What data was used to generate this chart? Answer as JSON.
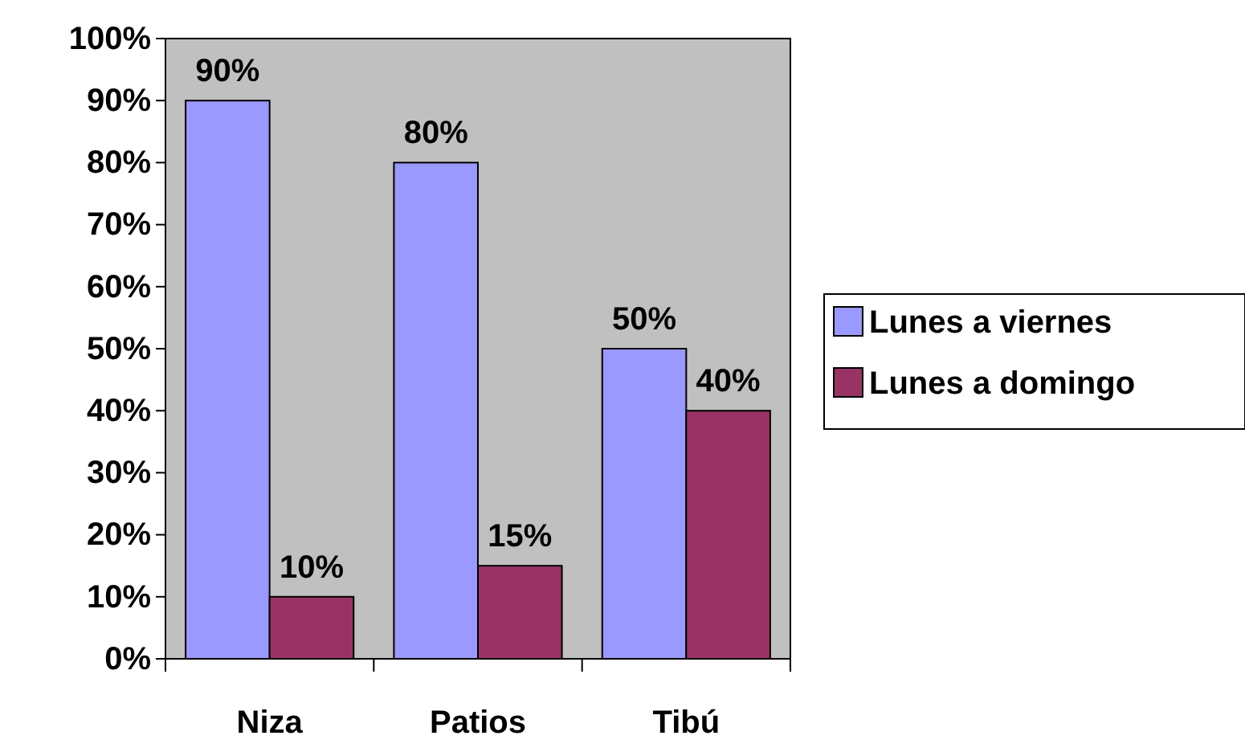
{
  "chart_data": {
    "type": "bar",
    "categories": [
      "Niza",
      "Patios",
      "Tibú"
    ],
    "series": [
      {
        "name": "Lunes a viernes",
        "color": "#9999ff",
        "values": [
          90,
          80,
          50
        ],
        "value_labels": [
          "90%",
          "80%",
          "50%"
        ]
      },
      {
        "name": "Lunes a domingo",
        "color": "#993366",
        "values": [
          10,
          15,
          40
        ],
        "value_labels": [
          "10%",
          "15%",
          "40%"
        ]
      }
    ],
    "ylim": [
      0,
      100
    ],
    "yticks": [
      {
        "value": 0,
        "label": "0%"
      },
      {
        "value": 10,
        "label": "10%"
      },
      {
        "value": 20,
        "label": "20%"
      },
      {
        "value": 30,
        "label": "30%"
      },
      {
        "value": 40,
        "label": "40%"
      },
      {
        "value": 50,
        "label": "50%"
      },
      {
        "value": 60,
        "label": "60%"
      },
      {
        "value": 70,
        "label": "70%"
      },
      {
        "value": 80,
        "label": "80%"
      },
      {
        "value": 90,
        "label": "90%"
      },
      {
        "value": 100,
        "label": "100%"
      }
    ],
    "grid": false,
    "legend": "right"
  }
}
